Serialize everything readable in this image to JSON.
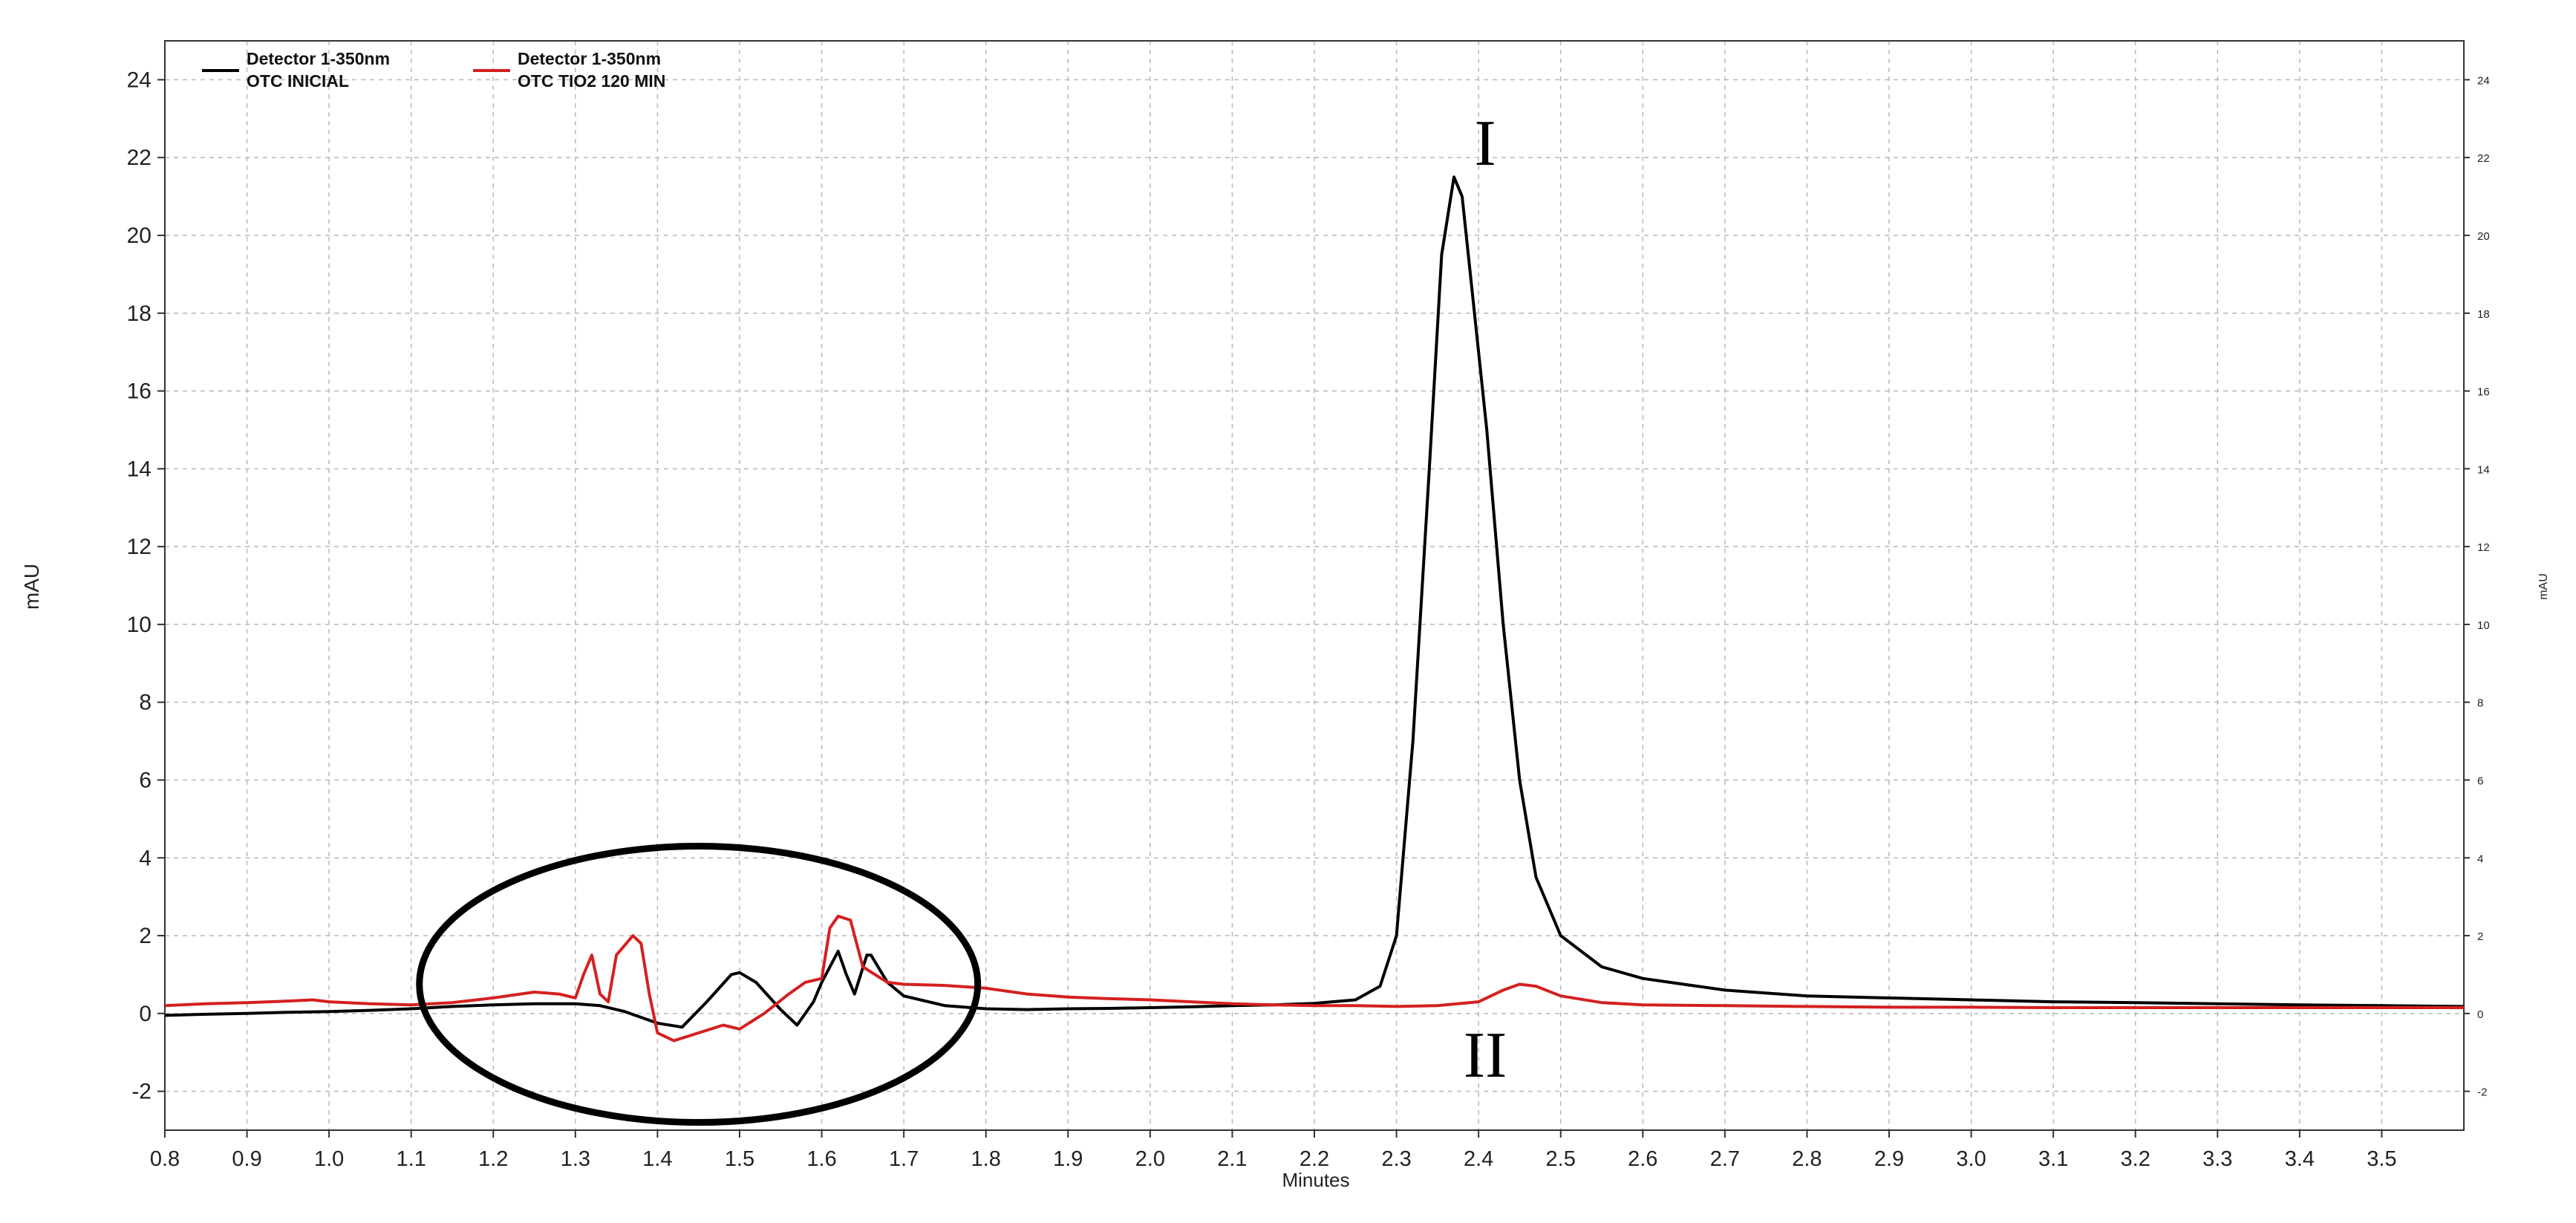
{
  "chart_data": {
    "type": "line",
    "xlabel": "Minutes",
    "ylabel": "mAU",
    "y2label": "mAU",
    "xlim": [
      0.8,
      3.6
    ],
    "ylim": [
      -3,
      25
    ],
    "x_ticks": [
      "0.8",
      "0.9",
      "1.0",
      "1.1",
      "1.2",
      "1.3",
      "1.4",
      "1.5",
      "1.6",
      "1.7",
      "1.8",
      "1.9",
      "2.0",
      "2.1",
      "2.2",
      "2.3",
      "2.4",
      "2.5",
      "2.6",
      "2.7",
      "2.8",
      "2.9",
      "3.0",
      "3.1",
      "3.2",
      "3.3",
      "3.4",
      "3.5"
    ],
    "y_ticks": [
      "-2",
      "0",
      "2",
      "4",
      "6",
      "8",
      "10",
      "12",
      "14",
      "16",
      "18",
      "20",
      "22",
      "24"
    ],
    "grid": true,
    "legend_position": "top-left",
    "series": [
      {
        "name": "Detector 1-350nm",
        "sublabel": "OTC INICIAL",
        "color": "#000000",
        "points": [
          [
            0.8,
            -0.05
          ],
          [
            0.85,
            -0.02
          ],
          [
            0.9,
            0.0
          ],
          [
            0.95,
            0.03
          ],
          [
            1.0,
            0.05
          ],
          [
            1.05,
            0.08
          ],
          [
            1.1,
            0.12
          ],
          [
            1.15,
            0.18
          ],
          [
            1.2,
            0.22
          ],
          [
            1.25,
            0.25
          ],
          [
            1.3,
            0.25
          ],
          [
            1.33,
            0.2
          ],
          [
            1.36,
            0.05
          ],
          [
            1.4,
            -0.25
          ],
          [
            1.43,
            -0.35
          ],
          [
            1.46,
            0.3
          ],
          [
            1.49,
            1.0
          ],
          [
            1.5,
            1.05
          ],
          [
            1.52,
            0.8
          ],
          [
            1.55,
            0.1
          ],
          [
            1.57,
            -0.3
          ],
          [
            1.59,
            0.3
          ],
          [
            1.6,
            0.8
          ],
          [
            1.62,
            1.6
          ],
          [
            1.63,
            1.0
          ],
          [
            1.64,
            0.5
          ],
          [
            1.655,
            1.5
          ],
          [
            1.66,
            1.5
          ],
          [
            1.68,
            0.8
          ],
          [
            1.7,
            0.45
          ],
          [
            1.75,
            0.2
          ],
          [
            1.8,
            0.12
          ],
          [
            1.85,
            0.1
          ],
          [
            1.9,
            0.12
          ],
          [
            1.95,
            0.13
          ],
          [
            2.0,
            0.15
          ],
          [
            2.05,
            0.17
          ],
          [
            2.1,
            0.2
          ],
          [
            2.15,
            0.22
          ],
          [
            2.2,
            0.26
          ],
          [
            2.25,
            0.35
          ],
          [
            2.28,
            0.7
          ],
          [
            2.3,
            2.0
          ],
          [
            2.32,
            7.0
          ],
          [
            2.34,
            14.0
          ],
          [
            2.355,
            19.5
          ],
          [
            2.37,
            21.5
          ],
          [
            2.38,
            21.0
          ],
          [
            2.39,
            19.0
          ],
          [
            2.41,
            15.0
          ],
          [
            2.43,
            10.0
          ],
          [
            2.45,
            6.0
          ],
          [
            2.47,
            3.5
          ],
          [
            2.5,
            2.0
          ],
          [
            2.55,
            1.2
          ],
          [
            2.6,
            0.9
          ],
          [
            2.7,
            0.6
          ],
          [
            2.8,
            0.45
          ],
          [
            2.9,
            0.4
          ],
          [
            3.0,
            0.35
          ],
          [
            3.1,
            0.3
          ],
          [
            3.2,
            0.28
          ],
          [
            3.3,
            0.25
          ],
          [
            3.4,
            0.22
          ],
          [
            3.5,
            0.2
          ],
          [
            3.6,
            0.18
          ]
        ]
      },
      {
        "name": "Detector 1-350nm",
        "sublabel": "OTC TIO2 120 MIN",
        "color": "#d42020",
        "points": [
          [
            0.8,
            0.2
          ],
          [
            0.85,
            0.25
          ],
          [
            0.9,
            0.28
          ],
          [
            0.95,
            0.32
          ],
          [
            0.98,
            0.35
          ],
          [
            1.0,
            0.3
          ],
          [
            1.05,
            0.25
          ],
          [
            1.1,
            0.22
          ],
          [
            1.15,
            0.28
          ],
          [
            1.2,
            0.4
          ],
          [
            1.25,
            0.55
          ],
          [
            1.28,
            0.5
          ],
          [
            1.3,
            0.4
          ],
          [
            1.31,
            1.0
          ],
          [
            1.32,
            1.5
          ],
          [
            1.33,
            0.5
          ],
          [
            1.34,
            0.3
          ],
          [
            1.35,
            1.5
          ],
          [
            1.37,
            2.0
          ],
          [
            1.38,
            1.8
          ],
          [
            1.39,
            0.5
          ],
          [
            1.4,
            -0.5
          ],
          [
            1.42,
            -0.7
          ],
          [
            1.45,
            -0.5
          ],
          [
            1.48,
            -0.3
          ],
          [
            1.5,
            -0.4
          ],
          [
            1.53,
            0.0
          ],
          [
            1.56,
            0.5
          ],
          [
            1.58,
            0.8
          ],
          [
            1.6,
            0.9
          ],
          [
            1.61,
            2.2
          ],
          [
            1.62,
            2.5
          ],
          [
            1.635,
            2.4
          ],
          [
            1.65,
            1.2
          ],
          [
            1.68,
            0.8
          ],
          [
            1.7,
            0.75
          ],
          [
            1.75,
            0.72
          ],
          [
            1.8,
            0.65
          ],
          [
            1.85,
            0.5
          ],
          [
            1.9,
            0.42
          ],
          [
            1.95,
            0.38
          ],
          [
            2.0,
            0.35
          ],
          [
            2.05,
            0.3
          ],
          [
            2.1,
            0.25
          ],
          [
            2.15,
            0.22
          ],
          [
            2.2,
            0.2
          ],
          [
            2.25,
            0.2
          ],
          [
            2.3,
            0.18
          ],
          [
            2.35,
            0.2
          ],
          [
            2.4,
            0.3
          ],
          [
            2.43,
            0.6
          ],
          [
            2.45,
            0.75
          ],
          [
            2.47,
            0.7
          ],
          [
            2.5,
            0.45
          ],
          [
            2.55,
            0.28
          ],
          [
            2.6,
            0.22
          ],
          [
            2.7,
            0.2
          ],
          [
            2.8,
            0.18
          ],
          [
            2.9,
            0.16
          ],
          [
            3.0,
            0.16
          ],
          [
            3.1,
            0.15
          ],
          [
            3.2,
            0.15
          ],
          [
            3.3,
            0.15
          ],
          [
            3.4,
            0.15
          ],
          [
            3.5,
            0.15
          ],
          [
            3.6,
            0.15
          ]
        ]
      }
    ],
    "annotations": [
      {
        "text": "I",
        "x": 2.42,
        "y": 22.0
      },
      {
        "text": "II",
        "x": 2.42,
        "y": -2.2
      }
    ],
    "highlight_ellipse": {
      "cx": 1.45,
      "cy": 0.75,
      "rx": 0.34,
      "ry": 3.55
    }
  }
}
